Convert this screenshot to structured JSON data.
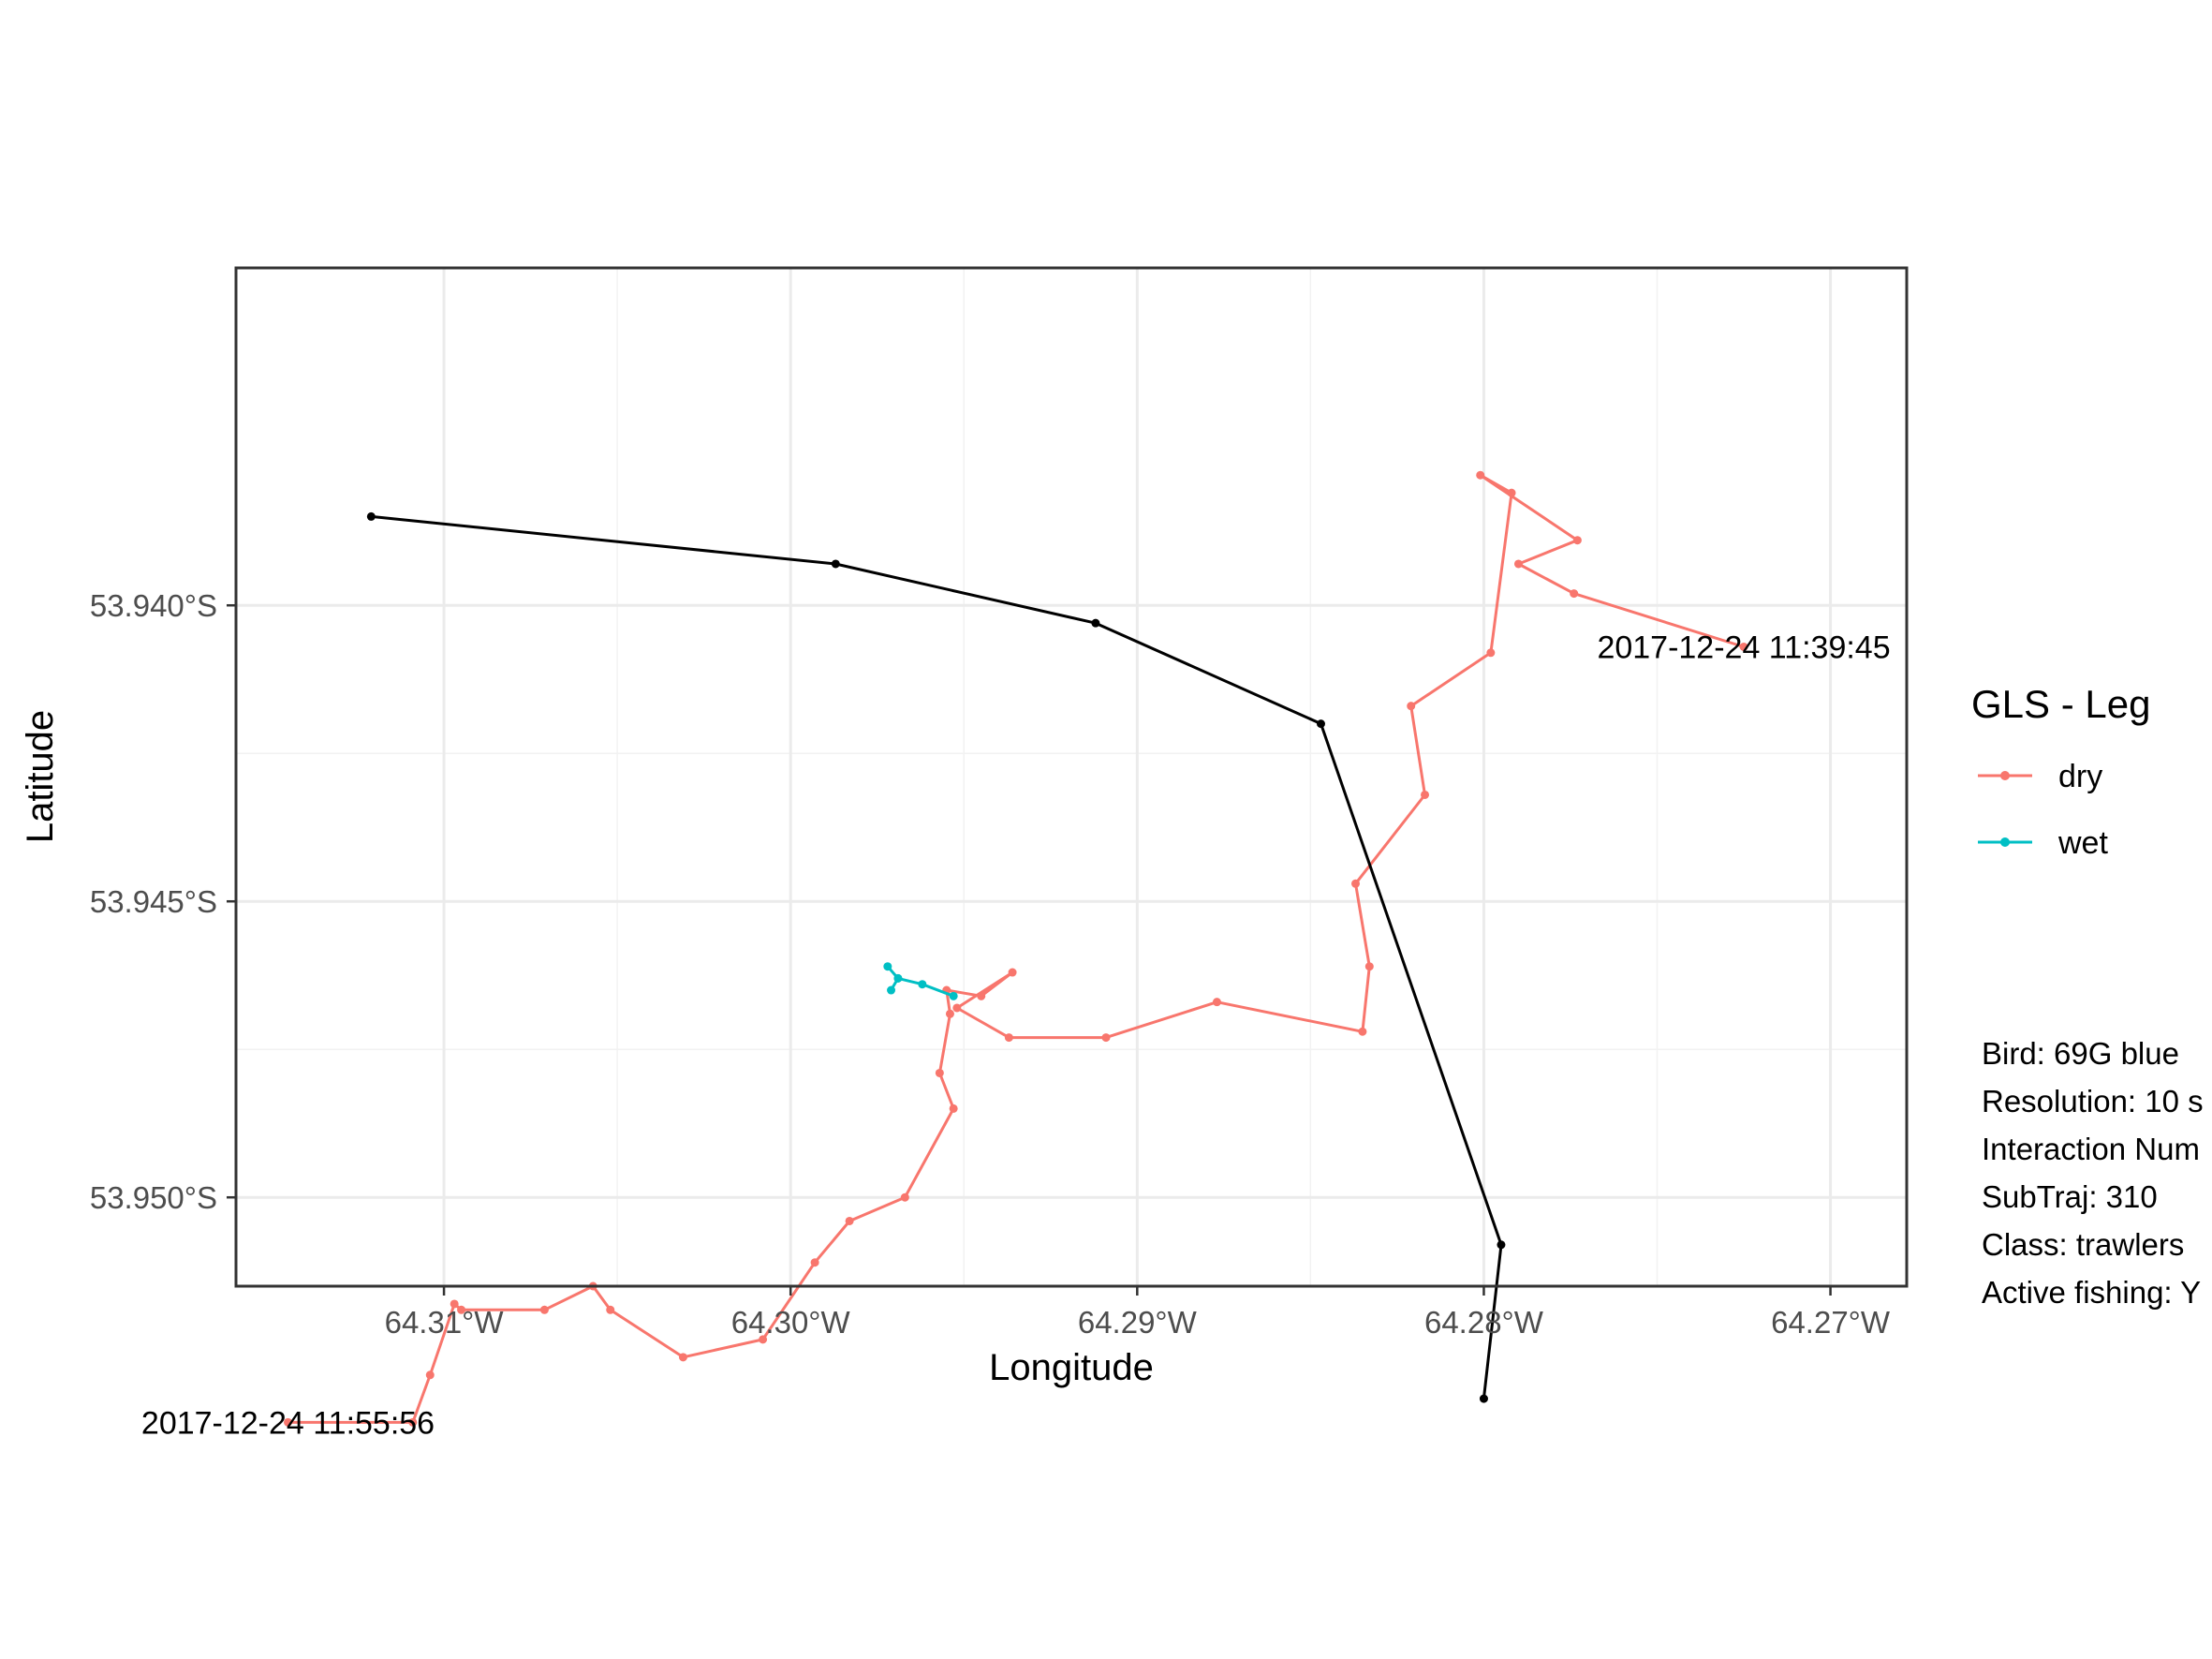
{
  "chart_data": {
    "type": "line",
    "xlabel": "Longitude",
    "ylabel": "Latitude",
    "xlim": [
      -64.316,
      -64.2678
    ],
    "ylim": [
      -53.9515,
      -53.9343
    ],
    "x_ticks": [
      {
        "value": -64.31,
        "label": "64.31°W"
      },
      {
        "value": -64.3,
        "label": "64.30°W"
      },
      {
        "value": -64.29,
        "label": "64.29°W"
      },
      {
        "value": -64.28,
        "label": "64.28°W"
      },
      {
        "value": -64.27,
        "label": "64.27°W"
      }
    ],
    "y_ticks": [
      {
        "value": -53.94,
        "label": "53.940°S"
      },
      {
        "value": -53.945,
        "label": "53.945°S"
      },
      {
        "value": -53.95,
        "label": "53.950°S"
      }
    ],
    "grid": true,
    "legend": {
      "title": "GLS - Leg",
      "position": "right",
      "entries": [
        {
          "label": "dry",
          "color": "#F8766D"
        },
        {
          "label": "wet",
          "color": "#00BFC4"
        }
      ]
    },
    "series": [
      {
        "name": "dry",
        "color": "#F8766D",
        "points": [
          [
            -64.2725,
            -53.9407
          ],
          [
            -64.2774,
            -53.9398
          ],
          [
            -64.279,
            -53.9393
          ],
          [
            -64.2773,
            -53.9389
          ],
          [
            -64.2801,
            -53.9378
          ],
          [
            -64.2792,
            -53.9381
          ],
          [
            -64.2798,
            -53.9408
          ],
          [
            -64.2821,
            -53.9417
          ],
          [
            -64.2817,
            -53.9432
          ],
          [
            -64.2837,
            -53.9447
          ],
          [
            -64.2833,
            -53.9461
          ],
          [
            -64.2835,
            -53.9472
          ],
          [
            -64.2877,
            -53.9467
          ],
          [
            -64.2909,
            -53.9473
          ],
          [
            -64.2937,
            -53.9473
          ],
          [
            -64.2952,
            -53.9468
          ],
          [
            -64.2936,
            -53.9462
          ],
          [
            -64.2945,
            -53.9466
          ],
          [
            -64.2955,
            -53.9465
          ],
          [
            -64.2954,
            -53.9469
          ],
          [
            -64.2957,
            -53.9479
          ],
          [
            -64.2953,
            -53.9485
          ],
          [
            -64.2967,
            -53.95
          ],
          [
            -64.2983,
            -53.9504
          ],
          [
            -64.2993,
            -53.9511
          ],
          [
            -64.3008,
            -53.9524
          ],
          [
            -64.3031,
            -53.9527
          ],
          [
            -64.3052,
            -53.9519
          ],
          [
            -64.3057,
            -53.9515
          ],
          [
            -64.3071,
            -53.9519
          ],
          [
            -64.3095,
            -53.9519
          ],
          [
            -64.3097,
            -53.9518
          ],
          [
            -64.3104,
            -53.953
          ],
          [
            -64.3109,
            -53.9538
          ],
          [
            -64.3145,
            -53.9538
          ]
        ]
      },
      {
        "name": "wet",
        "color": "#00BFC4",
        "points": [
          [
            -64.2953,
            -53.9466
          ],
          [
            -64.2962,
            -53.9464
          ],
          [
            -64.2969,
            -53.9463
          ],
          [
            -64.2972,
            -53.9461
          ],
          [
            -64.2969,
            -53.9463
          ],
          [
            -64.2971,
            -53.9465
          ]
        ]
      },
      {
        "name": "",
        "color": "#000000",
        "points": [
          [
            -64.3121,
            -53.9385
          ],
          [
            -64.2987,
            -53.9393
          ],
          [
            -64.2912,
            -53.9403
          ],
          [
            -64.2847,
            -53.942
          ],
          [
            -64.2795,
            -53.9508
          ],
          [
            -64.28,
            -53.9534
          ]
        ]
      }
    ],
    "annotations": [
      {
        "text": "2017-12-24 11:39:45",
        "x": -64.2725,
        "y": -53.9407
      },
      {
        "text": "2017-12-24 11:55:56",
        "x": -64.3145,
        "y": -53.9538
      }
    ],
    "info_lines": [
      "Bird: 69G blue",
      "Resolution: 10 s",
      "Interaction Num",
      "SubTraj: 310",
      "Class: trawlers",
      "Active fishing: Y"
    ]
  }
}
